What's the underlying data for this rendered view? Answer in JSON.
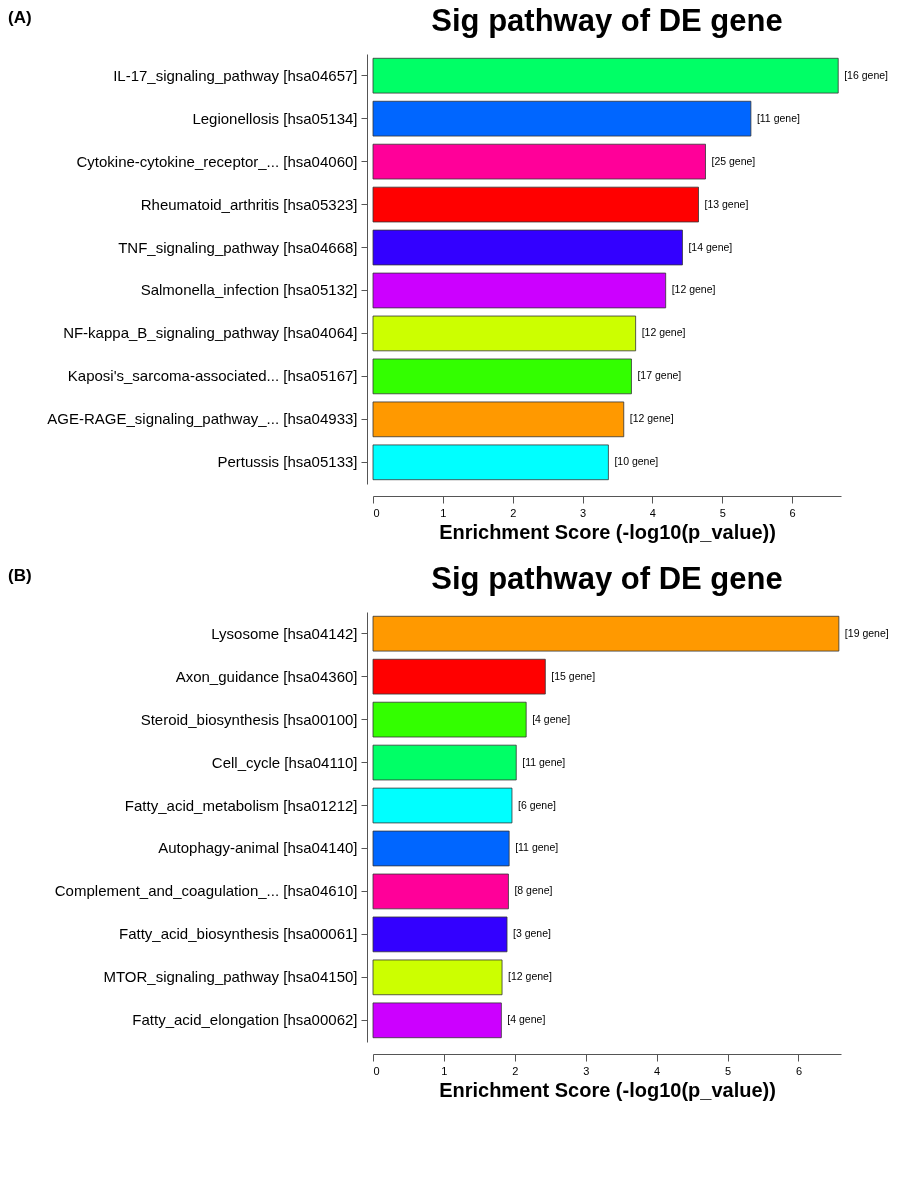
{
  "chart_data": [
    {
      "type": "bar",
      "orientation": "horizontal",
      "title": "Sig pathway of DE gene",
      "xlabel": "Enrichment Score (-log10(p_value))",
      "categories": [
        "IL-17_signaling_pathway [hsa04657]",
        "Legionellosis [hsa05134]",
        "Cytokine-cytokine_receptor_... [hsa04060]",
        "Rheumatoid_arthritis [hsa05323]",
        "TNF_signaling_pathway [hsa04668]",
        "Salmonella_infection [hsa05132]",
        "NF-kappa_B_signaling_pathway [hsa04064]",
        "Kaposi's_sarcoma-associated... [hsa05167]",
        "AGE-RAGE_signaling_pathway_... [hsa04933]",
        "Pertussis [hsa05133]"
      ],
      "values": [
        6.66,
        5.41,
        4.76,
        4.66,
        4.43,
        4.19,
        3.76,
        3.7,
        3.59,
        3.37
      ],
      "colors": [
        "#00ff66",
        "#0066ff",
        "#ff0099",
        "#ff0000",
        "#3300ff",
        "#cc00ff",
        "#ccff00",
        "#33ff00",
        "#ff9900",
        "#00ffff"
      ],
      "annotations": [
        "(A)",
        {
          "text": "[16 gene]",
          "x": 6.66,
          "y": "IL-17_signaling_pathway [hsa04657]"
        },
        {
          "text": "[11 gene]",
          "x": 5.41,
          "y": "Legionellosis [hsa05134]"
        },
        {
          "text": "[25 gene]",
          "x": 4.76,
          "y": "Cytokine-cytokine_receptor_... [hsa04060]"
        },
        {
          "text": "[13 gene]",
          "x": 4.66,
          "y": "Rheumatoid_arthritis [hsa05323]"
        },
        {
          "text": "[14 gene]",
          "x": 4.43,
          "y": "TNF_signaling_pathway [hsa04668]"
        },
        {
          "text": "[12 gene]",
          "x": 4.19,
          "y": "Salmonella_infection [hsa05132]"
        },
        {
          "text": "[12 gene]",
          "x": 3.76,
          "y": "NF-kappa_B_signaling_pathway [hsa04064]"
        },
        {
          "text": "[17 gene]",
          "x": 3.7,
          "y": "Kaposi's_sarcoma-associated... [hsa05167]"
        },
        {
          "text": "[12 gene]",
          "x": 3.59,
          "y": "AGE-RAGE_signaling_pathway_... [hsa04933]"
        },
        {
          "text": "[10 gene]",
          "x": 3.37,
          "y": "Pertussis [hsa05133]"
        }
      ],
      "xlim": [
        0,
        6.7
      ],
      "xticks": [
        0,
        1,
        2,
        3,
        4,
        5,
        6
      ],
      "grid": false,
      "legend": false
    },
    {
      "type": "bar",
      "orientation": "horizontal",
      "title": "Sig pathway of DE gene",
      "xlabel": "Enrichment Score (-log10(p_value))",
      "categories": [
        "Lysosome [hsa04142]",
        "Axon_guidance [hsa04360]",
        "Steroid_biosynthesis [hsa00100]",
        "Cell_cycle [hsa04110]",
        "Fatty_acid_metabolism [hsa01212]",
        "Autophagy-animal [hsa04140]",
        "Complement_and_coagulation_... [hsa04610]",
        "Fatty_acid_biosynthesis [hsa00061]",
        "MTOR_signaling_pathway [hsa04150]",
        "Fatty_acid_elongation [hsa00062]"
      ],
      "values": [
        6.57,
        2.43,
        2.16,
        2.02,
        1.96,
        1.92,
        1.91,
        1.89,
        1.82,
        1.81
      ],
      "colors": [
        "#ff9900",
        "#ff0000",
        "#33ff00",
        "#00ff66",
        "#00ffff",
        "#0066ff",
        "#ff0099",
        "#3300ff",
        "#ccff00",
        "#cc00ff"
      ],
      "annotations": [
        "(B)",
        {
          "text": "[19 gene]",
          "x": 6.57,
          "y": "Lysosome [hsa04142]"
        },
        {
          "text": "[15 gene]",
          "x": 2.43,
          "y": "Axon_guidance [hsa04360]"
        },
        {
          "text": "[4 gene]",
          "x": 2.16,
          "y": "Steroid_biosynthesis [hsa00100]"
        },
        {
          "text": "[11 gene]",
          "x": 2.02,
          "y": "Cell_cycle [hsa04110]"
        },
        {
          "text": "[6 gene]",
          "x": 1.96,
          "y": "Fatty_acid_metabolism [hsa01212]"
        },
        {
          "text": "[11 gene]",
          "x": 1.92,
          "y": "Autophagy-animal [hsa04140]"
        },
        {
          "text": "[8 gene]",
          "x": 1.91,
          "y": "Complement_and_coagulation_... [hsa04610]"
        },
        {
          "text": "[3 gene]",
          "x": 1.89,
          "y": "Fatty_acid_biosynthesis [hsa00061]"
        },
        {
          "text": "[12 gene]",
          "x": 1.82,
          "y": "MTOR_signaling_pathway [hsa04150]"
        },
        {
          "text": "[4 gene]",
          "x": 1.81,
          "y": "Fatty_acid_elongation [hsa00062]"
        }
      ],
      "xlim": [
        0,
        6.6
      ],
      "xticks": [
        0,
        1,
        2,
        3,
        4,
        5,
        6
      ],
      "grid": false,
      "legend": false
    }
  ]
}
